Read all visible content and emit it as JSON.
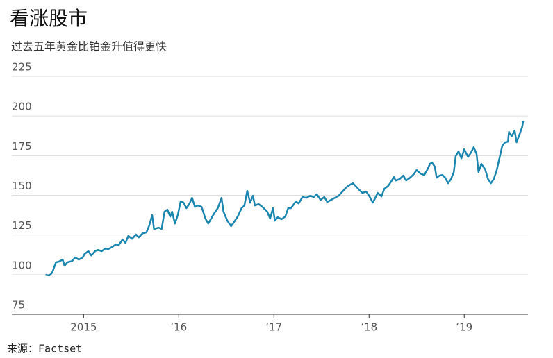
{
  "chart_data": {
    "type": "line",
    "title": "看涨股市",
    "subtitle": "过去五年黄金比铂金升值得更快",
    "source": "来源：Factset",
    "x": [
      2014.6,
      2014.64,
      2014.67,
      2014.71,
      2014.74,
      2014.78,
      2014.8,
      2014.83,
      2014.88,
      2014.91,
      2014.95,
      2014.99,
      2015.01,
      2015.05,
      2015.08,
      2015.12,
      2015.15,
      2015.19,
      2015.23,
      2015.26,
      2015.3,
      2015.34,
      2015.37,
      2015.41,
      2015.44,
      2015.47,
      2015.51,
      2015.55,
      2015.58,
      2015.62,
      2015.66,
      2015.69,
      2015.72,
      2015.74,
      2015.79,
      2015.82,
      2015.85,
      2015.88,
      2015.91,
      2015.93,
      2015.96,
      2015.99,
      2016.02,
      2016.05,
      2016.08,
      2016.11,
      2016.14,
      2016.17,
      2016.2,
      2016.24,
      2016.28,
      2016.31,
      2016.34,
      2016.37,
      2016.41,
      2016.45,
      2016.47,
      2016.51,
      2016.55,
      2016.58,
      2016.62,
      2016.66,
      2016.69,
      2016.72,
      2016.75,
      2016.78,
      2016.8,
      2016.84,
      2016.88,
      2016.93,
      2016.96,
      2016.99,
      2017.01,
      2017.04,
      2017.08,
      2017.12,
      2017.15,
      2017.18,
      2017.2,
      2017.23,
      2017.26,
      2017.3,
      2017.34,
      2017.38,
      2017.42,
      2017.45,
      2017.49,
      2017.53,
      2017.56,
      2017.6,
      2017.64,
      2017.68,
      2017.72,
      2017.76,
      2017.8,
      2017.83,
      2017.86,
      2017.9,
      2017.93,
      2017.97,
      2018,
      2018.04,
      2018.07,
      2018.09,
      2018.13,
      2018.16,
      2018.2,
      2018.23,
      2018.26,
      2018.28,
      2018.32,
      2018.36,
      2018.39,
      2018.43,
      2018.47,
      2018.5,
      2018.54,
      2018.58,
      2018.61,
      2018.64,
      2018.66,
      2018.69,
      2018.71,
      2018.74,
      2018.77,
      2018.8,
      2018.83,
      2018.86,
      2018.89,
      2018.91,
      2018.94,
      2018.97,
      2019,
      2019.04,
      2019.07,
      2019.1,
      2019.13,
      2019.15,
      2019.18,
      2019.22,
      2019.25,
      2019.28,
      2019.31,
      2019.34,
      2019.37,
      2019.4,
      2019.43,
      2019.46,
      2019.47,
      2019.5,
      2019.53,
      2019.55,
      2019.58,
      2019.61,
      2019.62
    ],
    "series": [
      {
        "color": "#1a86b0",
        "values": [
          99.9,
          99.5,
          101.2,
          107.8,
          108.2,
          109.5,
          105.6,
          107.8,
          108.6,
          110.8,
          109.5,
          110.8,
          113,
          114.8,
          112.1,
          114.8,
          115.6,
          114.8,
          116.5,
          116.1,
          117.4,
          119.1,
          118.7,
          122.2,
          120,
          124.4,
          122.6,
          125.3,
          123.5,
          126.1,
          126.6,
          130.9,
          137.5,
          128.8,
          129.6,
          128.8,
          139.7,
          141,
          136.6,
          139.7,
          132.2,
          137.5,
          146.2,
          145.4,
          141.9,
          144.5,
          148.4,
          142.7,
          143.6,
          142.7,
          135.3,
          132.2,
          135.3,
          138.4,
          141.9,
          148.4,
          139.7,
          134,
          130.5,
          133.1,
          136.6,
          141.9,
          143.6,
          152.8,
          145.4,
          149.7,
          143.6,
          144.5,
          142.7,
          139.7,
          135.3,
          141.9,
          134,
          136.2,
          134.9,
          136.6,
          141.9,
          141.9,
          143.6,
          146.2,
          144.9,
          148.9,
          148.4,
          149.7,
          148.9,
          150.6,
          147.1,
          148.9,
          145.8,
          147.1,
          148.4,
          149.7,
          152.3,
          155,
          156.7,
          157.6,
          155.8,
          153.2,
          151.5,
          152.3,
          149.7,
          145.4,
          148.9,
          151.5,
          149.3,
          154.1,
          155.8,
          158.5,
          161.5,
          159.3,
          160.2,
          162.4,
          159.3,
          161.1,
          163.3,
          165.9,
          163.7,
          162.8,
          165.9,
          169.8,
          170.7,
          168.1,
          161.1,
          162.4,
          162.8,
          161.1,
          157.6,
          160.2,
          164.6,
          174.6,
          177.7,
          173.3,
          179,
          174.2,
          176.8,
          180.3,
          176,
          164.6,
          169.8,
          166.3,
          160.2,
          157.6,
          160.2,
          165.5,
          173.3,
          181.2,
          183.4,
          183.8,
          189.9,
          187.3,
          190.8,
          183.4,
          188.2,
          193.4,
          196.9
        ]
      }
    ],
    "xlim": [
      2014.45,
      2019.67
    ],
    "xticks": [
      2015,
      {
        "value": 2016,
        "label": "‘16"
      },
      {
        "value": 2017,
        "label": "‘17"
      },
      {
        "value": 2018,
        "label": "‘18"
      },
      {
        "value": 2019,
        "label": "‘19"
      }
    ],
    "ylim": [
      75,
      225
    ],
    "yticks": [
      75,
      100,
      125,
      150,
      175,
      200,
      225
    ],
    "grid": true
  }
}
